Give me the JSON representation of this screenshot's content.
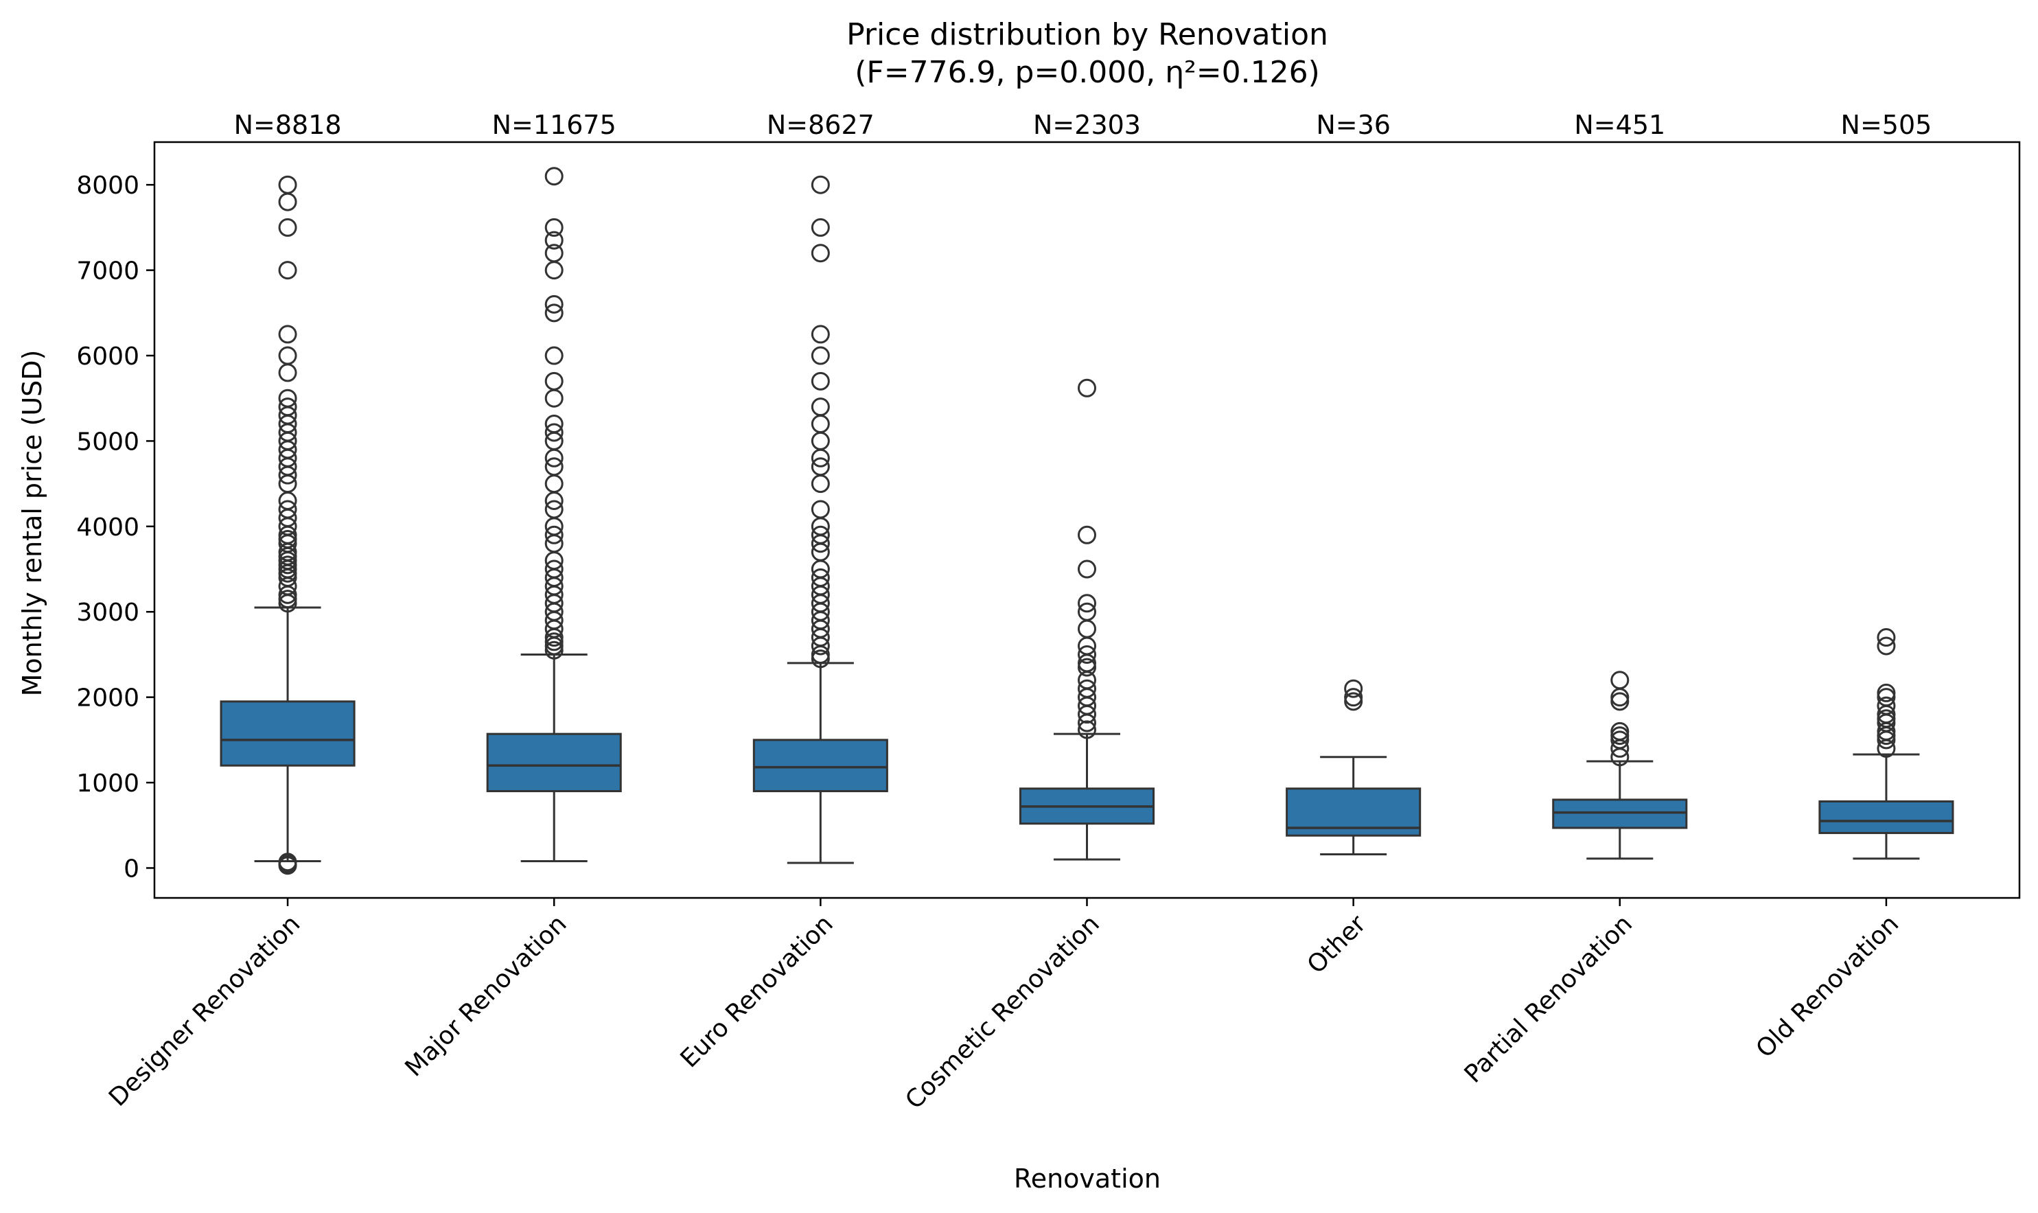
{
  "chart_data": {
    "type": "box",
    "title": "Price distribution by Renovation",
    "subtitle": "(F=776.9, p=0.000, η²=0.126)",
    "xlabel": "Renovation",
    "ylabel": "Monthly rental price (USD)",
    "ylim": [
      -350,
      8500
    ],
    "yticks": [
      0,
      1000,
      2000,
      3000,
      4000,
      5000,
      6000,
      7000,
      8000
    ],
    "grid": false,
    "box_color": "#2f74a7",
    "line_color": "#333333",
    "categories": [
      "Designer Renovation",
      "Major Renovation",
      "Euro Renovation",
      "Cosmetic Renovation",
      "Other",
      "Partial Renovation",
      "Old Renovation"
    ],
    "counts": [
      "N=8818",
      "N=11675",
      "N=8627",
      "N=2303",
      "N=36",
      "N=451",
      "N=505"
    ],
    "boxes": [
      {
        "whisker_low": 80,
        "q1": 1200,
        "median": 1500,
        "q3": 1950,
        "whisker_high": 3050,
        "outliers": [
          30,
          50,
          70,
          3100,
          3150,
          3200,
          3300,
          3400,
          3450,
          3500,
          3550,
          3600,
          3650,
          3700,
          3800,
          3850,
          3900,
          4000,
          4100,
          4200,
          4300,
          4500,
          4600,
          4700,
          4800,
          4900,
          5000,
          5100,
          5200,
          5300,
          5400,
          5500,
          5800,
          6000,
          6250,
          7000,
          7500,
          7800,
          8000
        ]
      },
      {
        "whisker_low": 80,
        "q1": 900,
        "median": 1200,
        "q3": 1570,
        "whisker_high": 2500,
        "outliers": [
          2550,
          2600,
          2650,
          2700,
          2800,
          2900,
          3000,
          3100,
          3200,
          3300,
          3400,
          3500,
          3600,
          3800,
          3900,
          4000,
          4200,
          4300,
          4500,
          4700,
          4800,
          5000,
          5100,
          5200,
          5500,
          5700,
          6000,
          6500,
          6600,
          7000,
          7200,
          7350,
          7500,
          8100
        ]
      },
      {
        "whisker_low": 60,
        "q1": 900,
        "median": 1180,
        "q3": 1500,
        "whisker_high": 2400,
        "outliers": [
          2450,
          2500,
          2600,
          2700,
          2800,
          2900,
          3000,
          3100,
          3200,
          3300,
          3400,
          3500,
          3700,
          3800,
          3900,
          4000,
          4200,
          4500,
          4700,
          4800,
          5000,
          5200,
          5400,
          5700,
          6000,
          6250,
          7200,
          7500,
          8000
        ]
      },
      {
        "whisker_low": 100,
        "q1": 520,
        "median": 720,
        "q3": 930,
        "whisker_high": 1570,
        "outliers": [
          1620,
          1700,
          1800,
          1900,
          2000,
          2100,
          2200,
          2350,
          2400,
          2500,
          2600,
          2800,
          3000,
          3100,
          3500,
          3900,
          5620
        ]
      },
      {
        "whisker_low": 160,
        "q1": 380,
        "median": 470,
        "q3": 930,
        "whisker_high": 1300,
        "outliers": [
          1950,
          2000,
          2100
        ]
      },
      {
        "whisker_low": 110,
        "q1": 470,
        "median": 650,
        "q3": 800,
        "whisker_high": 1250,
        "outliers": [
          1300,
          1400,
          1500,
          1550,
          1600,
          1950,
          2000,
          2200
        ]
      },
      {
        "whisker_low": 110,
        "q1": 410,
        "median": 550,
        "q3": 780,
        "whisker_high": 1330,
        "outliers": [
          1400,
          1500,
          1550,
          1600,
          1700,
          1750,
          1800,
          1900,
          2000,
          2050,
          2600,
          2700
        ]
      }
    ]
  }
}
